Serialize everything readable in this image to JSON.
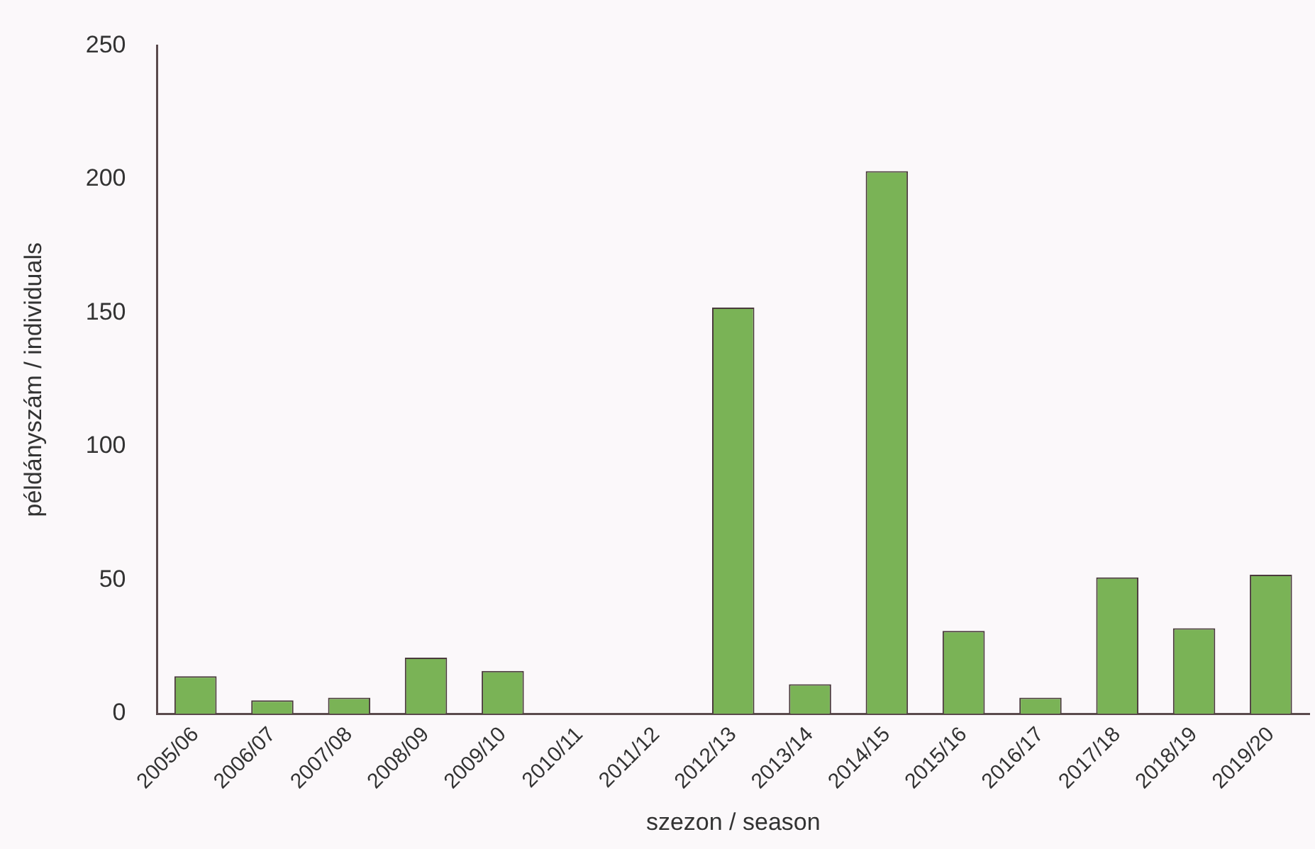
{
  "chart_data": {
    "type": "bar",
    "xlabel": "szezon / season",
    "ylabel": "példányszám / individuals",
    "categories": [
      "2005/06",
      "2006/07",
      "2007/08",
      "2008/09",
      "2009/10",
      "2010/11",
      "2011/12",
      "2012/13",
      "2013/14",
      "2014/15",
      "2015/16",
      "2016/17",
      "2017/18",
      "2018/19",
      "2019/20"
    ],
    "values": [
      14,
      5,
      6,
      21,
      16,
      0,
      0,
      152,
      11,
      203,
      31,
      6,
      51,
      32,
      52
    ],
    "color": "#7ab356",
    "ylim": [
      0,
      250
    ],
    "yticks": [
      0,
      50,
      100,
      150,
      200,
      250
    ],
    "grid": false,
    "legend": false
  }
}
